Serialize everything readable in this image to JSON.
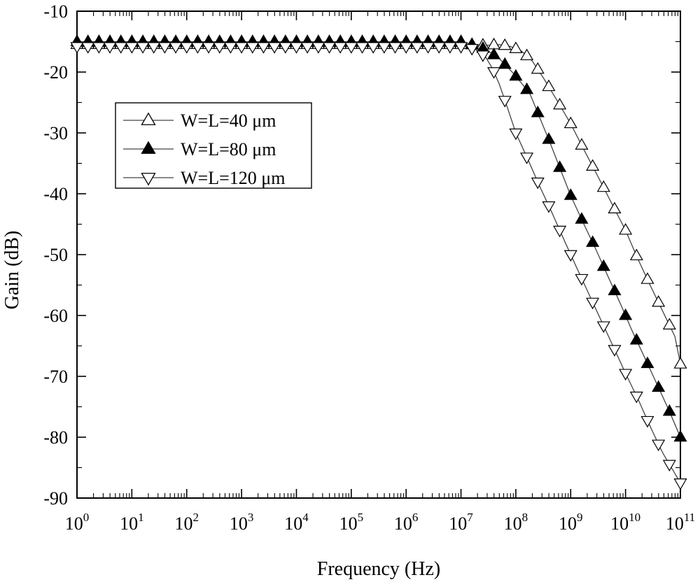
{
  "chart_data": {
    "type": "line",
    "xlabel": "Frequency (Hz)",
    "ylabel": "Gain (dB)",
    "xscale": "log",
    "xlim": [
      1,
      100000000000
    ],
    "ylim": [
      -90,
      -10
    ],
    "x_tick_base": "10",
    "x_tick_exponents": [
      "0",
      "1",
      "2",
      "3",
      "4",
      "5",
      "6",
      "7",
      "8",
      "9",
      "10",
      "11"
    ],
    "y_ticks": [
      -10,
      -20,
      -30,
      -40,
      -50,
      -60,
      -70,
      -80,
      -90
    ],
    "legend_position": "upper-left",
    "grid": false,
    "series": [
      {
        "name": "W=L=40 μm",
        "marker": "triangle-up",
        "marker_fill": "#ffffff",
        "points": [
          [
            1,
            -15.5
          ],
          [
            10000000,
            -15.5
          ],
          [
            30000000,
            -15.6
          ],
          [
            50000000,
            -15.5
          ],
          [
            80000000,
            -15.8
          ],
          [
            130000000,
            -16.6
          ],
          [
            200000000,
            -18.2
          ],
          [
            320000000,
            -21
          ],
          [
            550000000,
            -24.5
          ],
          [
            1000000000,
            -28.5
          ],
          [
            1800000000,
            -33
          ],
          [
            3200000000,
            -37.3
          ],
          [
            5600000000,
            -41.6
          ],
          [
            10000000000,
            -46
          ],
          [
            16000000000,
            -50.3
          ],
          [
            27000000000,
            -54.7
          ],
          [
            47000000000,
            -59.2
          ],
          [
            80000000000,
            -63.5
          ],
          [
            100000000000,
            -68
          ]
        ]
      },
      {
        "name": "W=L=80 μm",
        "marker": "triangle-up",
        "marker_fill": "#000000",
        "points": [
          [
            1,
            -15
          ],
          [
            10000000,
            -15
          ],
          [
            18000000,
            -15.6
          ],
          [
            30000000,
            -16.4
          ],
          [
            50000000,
            -17.8
          ],
          [
            90000000,
            -20.2
          ],
          [
            180000000,
            -23.5
          ],
          [
            270000000,
            -27.4
          ],
          [
            420000000,
            -31.6
          ],
          [
            650000000,
            -36
          ],
          [
            1000000000,
            -40.3
          ],
          [
            1700000000,
            -44.8
          ],
          [
            2900000000,
            -49.2
          ],
          [
            4800000000,
            -53.6
          ],
          [
            8000000000,
            -58
          ],
          [
            13000000000,
            -62.4
          ],
          [
            22000000000,
            -66.8
          ],
          [
            37000000000,
            -71.2
          ],
          [
            62000000000,
            -75.6
          ],
          [
            100000000000,
            -80
          ]
        ]
      },
      {
        "name": "W=L=120 μm",
        "marker": "triangle-down",
        "marker_fill": "#ffffff",
        "points": [
          [
            1,
            -15.8
          ],
          [
            10000000,
            -15.8
          ],
          [
            18000000,
            -16.2
          ],
          [
            28000000,
            -17.5
          ],
          [
            38000000,
            -19.5
          ],
          [
            50000000,
            -22
          ],
          [
            70000000,
            -25.8
          ],
          [
            100000000,
            -30
          ],
          [
            165000000,
            -34.3
          ],
          [
            270000000,
            -38.7
          ],
          [
            450000000,
            -43
          ],
          [
            750000000,
            -47.5
          ],
          [
            1250000000,
            -51.9
          ],
          [
            2100000000,
            -56.3
          ],
          [
            3500000000,
            -60.6
          ],
          [
            5900000000,
            -65
          ],
          [
            10000000000,
            -69.5
          ],
          [
            17000000000,
            -73.8
          ],
          [
            28000000000,
            -78.2
          ],
          [
            47000000000,
            -82.5
          ],
          [
            100000000000,
            -87.5
          ]
        ]
      }
    ]
  }
}
